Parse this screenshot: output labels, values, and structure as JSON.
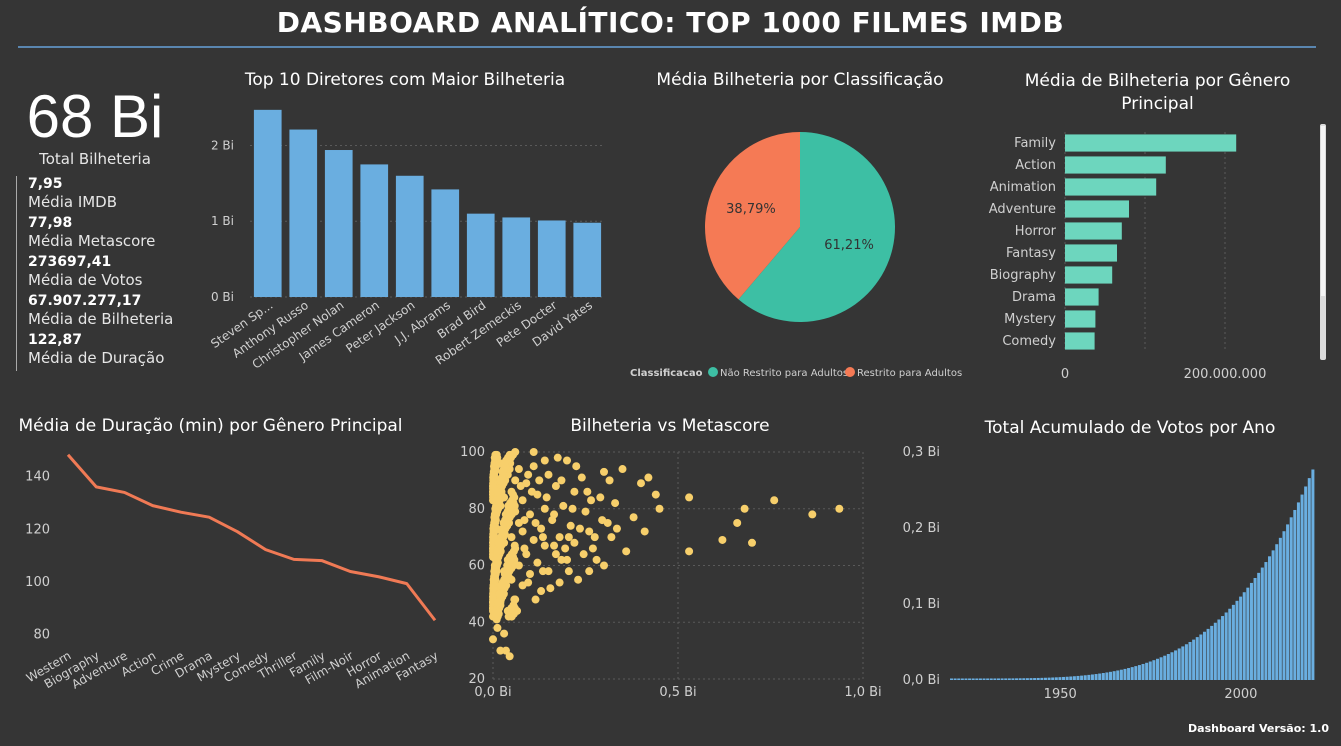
{
  "header": {
    "title": "DASHBOARD ANALÍTICO: TOP 1000 FILMES IMDB"
  },
  "kpi": {
    "total_value": "68 Bi",
    "total_label": "Total Bilheteria",
    "items": [
      {
        "value": "7,95",
        "label": "Média IMDB"
      },
      {
        "value": "77,98",
        "label": "Média Metascore"
      },
      {
        "value": "273697,41",
        "label": "Média de Votos"
      },
      {
        "value": "67.907.277,17",
        "label": "Média de Bilheteria"
      },
      {
        "value": "122,87",
        "label": "Média de Duração"
      }
    ]
  },
  "footer": {
    "version": "Dashboard Versão: 1.0"
  },
  "chart_data": [
    {
      "id": "directors",
      "type": "bar",
      "title": "Top 10 Diretores com Maior Bilheteria",
      "categories": [
        "Steven Sp...",
        "Anthony Russo",
        "Christopher Nolan",
        "James Cameron",
        "Peter Jackson",
        "J.J. Abrams",
        "Brad Bird",
        "Robert Zemeckis",
        "Pete Docter",
        "David Yates"
      ],
      "values": [
        2.47,
        2.21,
        1.94,
        1.75,
        1.6,
        1.42,
        1.1,
        1.05,
        1.01,
        0.98
      ],
      "ylim": [
        0,
        2.6
      ],
      "yticks": [
        0,
        1,
        2
      ],
      "ytick_labels": [
        "0 Bi",
        "1 Bi",
        "2 Bi"
      ],
      "color": "#6aaee0"
    },
    {
      "id": "classification",
      "type": "pie",
      "title": "Média Bilheteria por Classificação",
      "legend_title": "Classificacao",
      "slices": [
        {
          "name": "Não Restrito para Adultos",
          "value": 61.21,
          "label": "61,21%",
          "color": "#3dbfa4"
        },
        {
          "name": "Restrito para Adultos",
          "value": 38.79,
          "label": "38,79%",
          "color": "#f57a55"
        }
      ],
      "legend_position": "bottom"
    },
    {
      "id": "genre_box_office",
      "type": "bar",
      "orientation": "horizontal",
      "title": "Média de Bilheteria por Gênero Principal",
      "categories": [
        "Family",
        "Action",
        "Animation",
        "Adventure",
        "Horror",
        "Fantasy",
        "Biography",
        "Drama",
        "Mystery",
        "Comedy"
      ],
      "values": [
        214000000,
        126000000,
        114000000,
        80000000,
        71000000,
        65000000,
        59000000,
        42000000,
        38000000,
        37000000
      ],
      "xlim": [
        0,
        300000000
      ],
      "xticks": [
        0,
        200000000
      ],
      "xtick_labels": [
        "0",
        "200.000.000"
      ],
      "color": "#6dd6be"
    },
    {
      "id": "duration_by_genre",
      "type": "line",
      "title": "Média de Duração (min) por Gênero Principal",
      "categories": [
        "Western",
        "Biography",
        "Adventure",
        "Action",
        "Crime",
        "Drama",
        "Mystery",
        "Comedy",
        "Thriller",
        "Family",
        "Film-Noir",
        "Horror",
        "Animation",
        "Fantasy"
      ],
      "values": [
        148.3,
        136.1,
        134.0,
        129.0,
        126.5,
        124.6,
        119.1,
        112.3,
        108.6,
        108.1,
        104.0,
        102.0,
        99.4,
        85.5
      ],
      "ylim": [
        78,
        152
      ],
      "yticks": [
        80,
        100,
        120,
        140
      ],
      "color": "#f07a55"
    },
    {
      "id": "boxoffice_vs_metascore",
      "type": "scatter",
      "title": "Bilheteria vs Metascore",
      "xlim": [
        0,
        1.0
      ],
      "ylim": [
        20,
        100
      ],
      "xticks": [
        0,
        0.5,
        1.0
      ],
      "xtick_labels": [
        "0,0 Bi",
        "0,5 Bi",
        "1,0 Bi"
      ],
      "yticks": [
        20,
        40,
        60,
        80,
        100
      ],
      "color": "#f7cf6b",
      "points": [
        [
          0.936,
          80
        ],
        [
          0.863,
          78
        ],
        [
          0.76,
          83
        ],
        [
          0.68,
          80
        ],
        [
          0.62,
          69
        ],
        [
          0.66,
          75
        ],
        [
          0.7,
          68
        ],
        [
          0.53,
          84
        ],
        [
          0.53,
          65
        ],
        [
          0.45,
          80
        ],
        [
          0.42,
          91
        ],
        [
          0.4,
          89
        ],
        [
          0.44,
          85
        ],
        [
          0.41,
          72
        ],
        [
          0.38,
          77
        ],
        [
          0.36,
          65
        ],
        [
          0.35,
          94
        ],
        [
          0.33,
          82
        ],
        [
          0.32,
          70
        ],
        [
          0.31,
          75
        ],
        [
          0.3,
          60
        ],
        [
          0.3,
          93
        ],
        [
          0.29,
          84
        ],
        [
          0.28,
          62
        ],
        [
          0.27,
          66
        ],
        [
          0.26,
          58
        ],
        [
          0.26,
          72
        ],
        [
          0.25,
          79
        ],
        [
          0.24,
          91
        ],
        [
          0.23,
          55
        ],
        [
          0.22,
          68
        ],
        [
          0.22,
          86
        ],
        [
          0.21,
          74
        ],
        [
          0.2,
          62
        ],
        [
          0.2,
          97
        ],
        [
          0.19,
          81
        ],
        [
          0.18,
          54
        ],
        [
          0.18,
          70
        ],
        [
          0.17,
          64
        ],
        [
          0.17,
          88
        ],
        [
          0.16,
          76
        ],
        [
          0.15,
          58
        ],
        [
          0.15,
          92
        ],
        [
          0.14,
          67
        ],
        [
          0.14,
          80
        ],
        [
          0.13,
          51
        ],
        [
          0.13,
          73
        ],
        [
          0.12,
          61
        ],
        [
          0.12,
          85
        ],
        [
          0.11,
          69
        ],
        [
          0.11,
          95
        ],
        [
          0.1,
          57
        ],
        [
          0.1,
          78
        ],
        [
          0.09,
          64
        ],
        [
          0.09,
          89
        ],
        [
          0.08,
          53
        ],
        [
          0.08,
          72
        ],
        [
          0.08,
          83
        ],
        [
          0.07,
          60
        ],
        [
          0.07,
          75
        ],
        [
          0.07,
          94
        ],
        [
          0.06,
          48
        ],
        [
          0.06,
          66
        ],
        [
          0.06,
          79
        ],
        [
          0.06,
          90
        ],
        [
          0.05,
          55
        ],
        [
          0.05,
          70
        ],
        [
          0.05,
          86
        ],
        [
          0.05,
          99
        ],
        [
          0.04,
          44
        ],
        [
          0.04,
          62
        ],
        [
          0.04,
          77
        ],
        [
          0.04,
          92
        ],
        [
          0.03,
          36
        ],
        [
          0.03,
          58
        ],
        [
          0.03,
          68
        ],
        [
          0.03,
          84
        ],
        [
          0.02,
          30
        ],
        [
          0.02,
          47
        ],
        [
          0.02,
          65
        ],
        [
          0.02,
          81
        ],
        [
          0.02,
          96
        ],
        [
          0.01,
          41
        ],
        [
          0.01,
          52
        ],
        [
          0.01,
          73
        ],
        [
          0.01,
          88
        ],
        [
          0.0,
          34
        ],
        [
          0.0,
          45
        ],
        [
          0.005,
          60
        ],
        [
          0.005,
          78
        ],
        [
          0.045,
          28
        ],
        [
          0.035,
          30
        ],
        [
          0.012,
          38
        ],
        [
          0.045,
          94
        ],
        [
          0.055,
          82
        ],
        [
          0.075,
          88
        ],
        [
          0.085,
          76
        ],
        [
          0.095,
          92
        ],
        [
          0.105,
          86
        ],
        [
          0.125,
          90
        ],
        [
          0.135,
          70
        ],
        [
          0.145,
          84
        ],
        [
          0.165,
          78
        ],
        [
          0.185,
          90
        ],
        [
          0.195,
          66
        ],
        [
          0.215,
          80
        ],
        [
          0.235,
          73
        ],
        [
          0.255,
          86
        ],
        [
          0.275,
          70
        ],
        [
          0.295,
          76
        ],
        [
          0.315,
          90
        ],
        [
          0.335,
          73
        ],
        [
          0.245,
          64
        ],
        [
          0.205,
          58
        ],
        [
          0.185,
          62
        ],
        [
          0.155,
          52
        ],
        [
          0.115,
          48
        ],
        [
          0.095,
          54
        ],
        [
          0.065,
          44
        ],
        [
          0.135,
          58
        ],
        [
          0.225,
          95
        ],
        [
          0.175,
          98
        ],
        [
          0.14,
          97
        ],
        [
          0.06,
          100
        ],
        [
          0.11,
          100
        ],
        [
          0.205,
          70
        ],
        [
          0.265,
          83
        ],
        [
          0.165,
          67
        ],
        [
          0.115,
          75
        ],
        [
          0.085,
          66
        ]
      ]
    },
    {
      "id": "cumulative_votes",
      "type": "bar",
      "title": "Total Acumulado de Votos por Ano",
      "x_start": 1920,
      "x_end": 2020,
      "xticks": [
        1950,
        2000
      ],
      "ylim": [
        0,
        0.3
      ],
      "yticks": [
        0,
        0.1,
        0.2,
        0.3
      ],
      "ytick_labels": [
        "0,0 Bi",
        "0,1 Bi",
        "0,2 Bi",
        "0,3 Bi"
      ],
      "growth_exponent": 4.2,
      "final_value": 0.275,
      "color": "#6aaee0"
    }
  ]
}
